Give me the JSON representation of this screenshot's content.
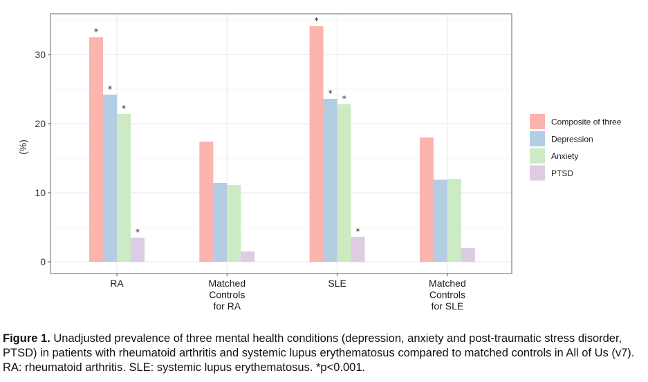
{
  "chart_data": {
    "type": "bar",
    "title": "",
    "xlabel": "",
    "ylabel": "(%)",
    "ylim": [
      -1.6,
      35.9
    ],
    "yticks": [
      0,
      10,
      20,
      30
    ],
    "grid": true,
    "legend_position": "right",
    "categories": [
      [
        "RA"
      ],
      [
        "Matched",
        "Controls",
        "for RA"
      ],
      [
        "SLE"
      ],
      [
        "Matched",
        "Controls",
        "for SLE"
      ]
    ],
    "category_names": [
      "RA",
      "Matched Controls for RA",
      "SLE",
      "Matched Controls for SLE"
    ],
    "series": [
      {
        "name": "Composite of three",
        "color": "#FBB4AE",
        "values": [
          32.5,
          17.4,
          34.1,
          18.0
        ],
        "significant": [
          true,
          false,
          true,
          false
        ]
      },
      {
        "name": "Depression",
        "color": "#B3CDE3",
        "values": [
          24.2,
          11.4,
          23.6,
          11.9
        ],
        "significant": [
          true,
          false,
          true,
          false
        ]
      },
      {
        "name": "Anxiety",
        "color": "#CCEBC5",
        "values": [
          21.4,
          11.1,
          22.8,
          12.0
        ],
        "significant": [
          true,
          false,
          true,
          false
        ]
      },
      {
        "name": "PTSD",
        "color": "#DECBE4",
        "values": [
          3.5,
          1.5,
          3.6,
          2.0
        ],
        "significant": [
          true,
          false,
          true,
          false
        ]
      }
    ],
    "significance_marker": "*"
  },
  "caption": {
    "label": "Figure 1.",
    "text": " Unadjusted prevalence of three mental health conditions (depression, anxiety and post-traumatic stress disorder, PTSD) in patients with rheumatoid arthritis and systemic lupus erythematosus compared to matched controls in All of Us (v7). RA: rheumatoid arthritis. SLE: systemic lupus erythematosus. *p<0.001."
  }
}
